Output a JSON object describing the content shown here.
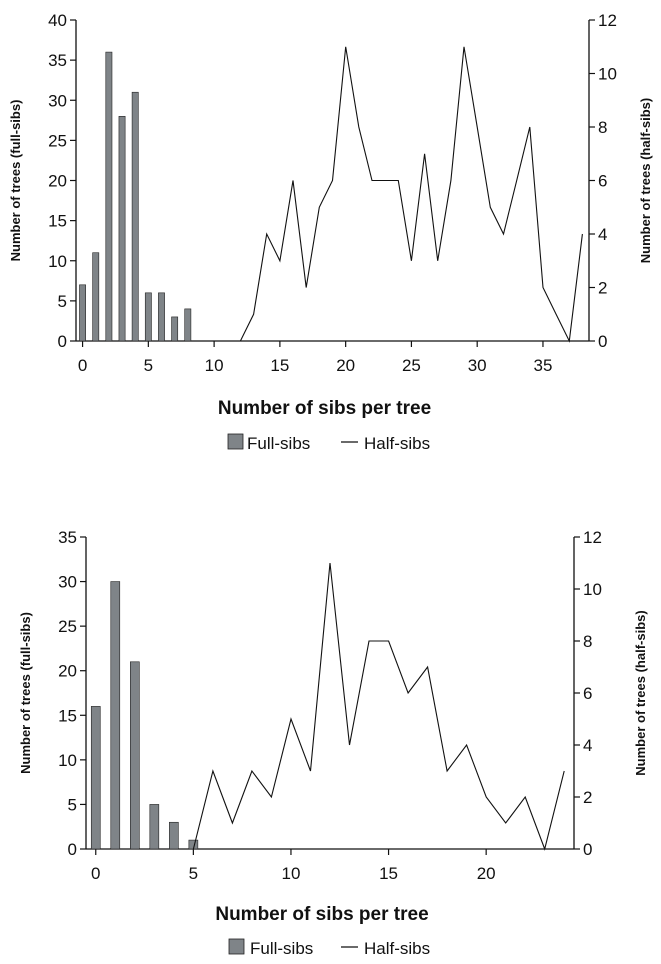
{
  "chart_data": [
    {
      "type": "bar",
      "xlabel": "Number of sibs per tree",
      "ylabel_left": "Number of trees (full-sibs)",
      "ylabel_right": "Number of trees (half-sibs)",
      "xlim": [
        -0.5,
        38.5
      ],
      "ylim_left": [
        0,
        40
      ],
      "ylim_right": [
        0,
        12
      ],
      "x_ticks": [
        0,
        5,
        10,
        15,
        20,
        25,
        30,
        35
      ],
      "y_ticks_left": [
        0,
        5,
        10,
        15,
        20,
        25,
        30,
        35,
        40
      ],
      "y_ticks_right": [
        0,
        2,
        4,
        6,
        8,
        10,
        12
      ],
      "legend": "bottom-center",
      "series": [
        {
          "name": "Full-sibs",
          "kind": "bar",
          "axis": "left",
          "color": "#7f8488",
          "x": [
            0,
            1,
            2,
            3,
            4,
            5,
            6,
            7,
            8
          ],
          "values": [
            7,
            11,
            36,
            28,
            31,
            6,
            6,
            3,
            4
          ]
        },
        {
          "name": "Half-sibs",
          "kind": "line",
          "axis": "right",
          "color": "#111111",
          "x": [
            12,
            13,
            14,
            15,
            16,
            17,
            18,
            19,
            20,
            21,
            22,
            23,
            24,
            25,
            26,
            27,
            28,
            29,
            30,
            31,
            32,
            33,
            34,
            35,
            36,
            37,
            38
          ],
          "values": [
            0,
            1,
            4,
            3,
            6,
            2,
            5,
            6,
            11,
            8,
            6,
            6,
            6,
            3,
            7,
            3,
            6,
            11,
            8,
            5,
            4,
            6,
            8,
            2,
            1,
            0,
            4
          ]
        }
      ]
    },
    {
      "type": "bar",
      "xlabel": "Number of sibs per tree",
      "ylabel_left": "Number of trees (full-sibs)",
      "ylabel_right": "Number of trees (half-sibs)",
      "xlim": [
        -0.5,
        24.5
      ],
      "ylim_left": [
        0,
        35
      ],
      "ylim_right": [
        0,
        12
      ],
      "x_ticks": [
        0,
        5,
        10,
        15,
        20
      ],
      "y_ticks_left": [
        0,
        5,
        10,
        15,
        20,
        25,
        30,
        35
      ],
      "y_ticks_right": [
        0,
        2,
        4,
        6,
        8,
        10,
        12
      ],
      "legend": "bottom-center",
      "series": [
        {
          "name": "Full-sibs",
          "kind": "bar",
          "axis": "left",
          "color": "#7f8488",
          "x": [
            0,
            1,
            2,
            3,
            4,
            5
          ],
          "values": [
            16,
            30,
            21,
            5,
            3,
            1
          ]
        },
        {
          "name": "Half-sibs",
          "kind": "line",
          "axis": "right",
          "color": "#111111",
          "x": [
            5,
            6,
            7,
            8,
            9,
            10,
            11,
            12,
            13,
            14,
            15,
            16,
            17,
            18,
            19,
            20,
            21,
            22,
            23,
            24
          ],
          "values": [
            0,
            3,
            1,
            3,
            2,
            5,
            3,
            11,
            4,
            8,
            8,
            6,
            7,
            3,
            4,
            2,
            1,
            2,
            0,
            3
          ]
        }
      ]
    }
  ]
}
